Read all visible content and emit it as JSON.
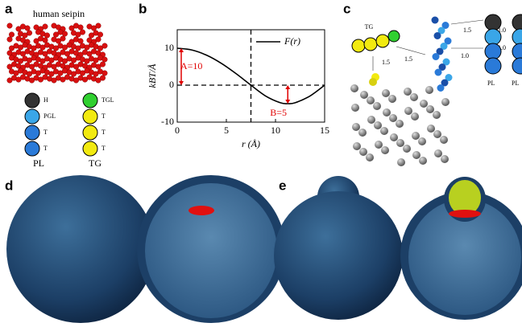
{
  "panels": {
    "a": {
      "label": "a",
      "title": "human seipin",
      "pl_beads": [
        "H",
        "PGL",
        "T",
        "T"
      ],
      "pl_label": "PL",
      "tg_beads": [
        "TGL",
        "T",
        "T",
        "T"
      ],
      "tg_label": "TG"
    },
    "c": {
      "label": "c",
      "tg_label": "TG",
      "bond_labels": [
        "1.5",
        "1.5",
        "1.5",
        "1.0",
        "1.0",
        "1.0"
      ],
      "pl_labels": [
        "PL",
        "PL"
      ]
    },
    "d": {
      "label": "d"
    },
    "e": {
      "label": "e"
    }
  },
  "chart_data": {
    "type": "line",
    "panel_label": "b",
    "x_label": "r (Å)",
    "y_label": "kBT/Å",
    "x": [
      0,
      1.5,
      3,
      4.5,
      6,
      7.5,
      9,
      10.5,
      11.25,
      12,
      13.5,
      15
    ],
    "series": [
      {
        "name": "F(r)",
        "color": "#000000",
        "values": [
          10,
          9.51,
          8.09,
          5.88,
          3.09,
          0,
          -2.94,
          -4.76,
          -5,
          -4.76,
          -2.94,
          0
        ]
      }
    ],
    "xlim": [
      0,
      15
    ],
    "ylim": [
      -10,
      15
    ],
    "xticks": [
      0,
      5,
      10,
      15
    ],
    "yticks": [
      -10,
      0,
      10
    ],
    "vlines": [
      7.5
    ],
    "hlines": [
      0
    ],
    "annotations": [
      "A=10",
      "B=5"
    ],
    "annotation_color": "#e00000"
  }
}
